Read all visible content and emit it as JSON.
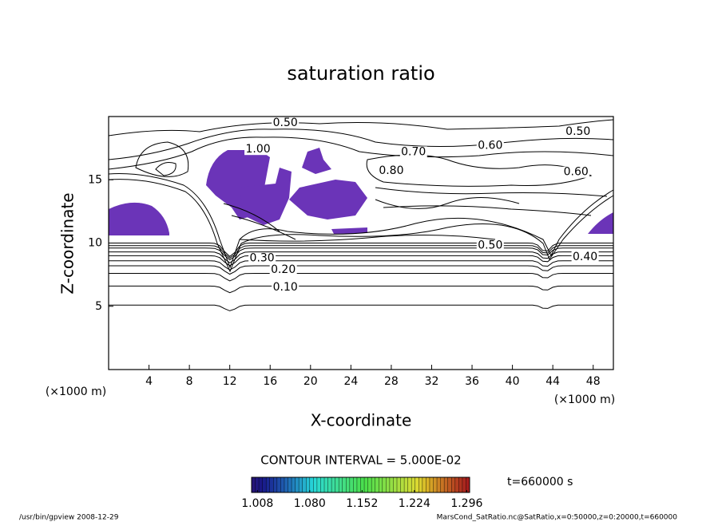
{
  "chart_data": {
    "type": "contour",
    "title": "saturation ratio",
    "xlabel": "X-coordinate",
    "ylabel": "Z-coordinate",
    "xunit": "(×1000 m)",
    "yunit": "(×1000 m)",
    "xlim": [
      0,
      50
    ],
    "ylim": [
      0,
      20
    ],
    "xticks": [
      4,
      8,
      12,
      16,
      20,
      24,
      28,
      32,
      36,
      40,
      44,
      48
    ],
    "yticks": [
      5,
      10,
      15
    ],
    "contours": [
      {
        "level": 0.05,
        "z": 5.1
      },
      {
        "level": 0.1,
        "z": 6.6
      },
      {
        "level": 0.15,
        "z": 7.6
      },
      {
        "level": 0.2,
        "z": 8.2
      },
      {
        "level": 0.25,
        "z": 8.6
      },
      {
        "level": 0.3,
        "z": 9.0
      },
      {
        "level": 0.35,
        "z": 9.3
      },
      {
        "level": 0.4,
        "z": 9.6
      },
      {
        "level": 0.45,
        "z": 9.8
      },
      {
        "level": 0.5,
        "z": 10.0
      }
    ],
    "contour_labels": [
      {
        "value": 0.5,
        "label": "0.50",
        "x": 17.5,
        "z": 19.5
      },
      {
        "value": 0.5,
        "label": "0.50",
        "x": 46.5,
        "z": 18.8
      },
      {
        "value": 0.6,
        "label": "0.60",
        "x": 37.8,
        "z": 17.7
      },
      {
        "value": 0.7,
        "label": "0.70",
        "x": 30.2,
        "z": 17.2
      },
      {
        "value": 0.8,
        "label": "0.80",
        "x": 28.0,
        "z": 15.7
      },
      {
        "value": 1.0,
        "label": "1.00",
        "x": 14.8,
        "z": 17.4
      },
      {
        "value": 0.6,
        "label": "0.60",
        "x": 46.3,
        "z": 15.6
      },
      {
        "value": 0.5,
        "label": "0.50",
        "x": 37.8,
        "z": 9.8
      },
      {
        "value": 0.4,
        "label": "0.40",
        "x": 47.2,
        "z": 8.9
      },
      {
        "value": 0.3,
        "label": "0.30",
        "x": 15.2,
        "z": 8.8
      },
      {
        "value": 0.2,
        "label": "0.20",
        "x": 17.3,
        "z": 7.9
      },
      {
        "value": 0.1,
        "label": "0.10",
        "x": 17.5,
        "z": 6.5
      }
    ],
    "contour_interval": "CONTOUR INTERVAL = 5.000E-02",
    "clim": [
      1.0,
      1.3
    ],
    "cticks": [
      1.008,
      {
        "value": 1.08,
        "label": "1.080"
      },
      1.152,
      1.224,
      1.296
    ],
    "time_label": "t=660000 s",
    "footer_left": "/usr/bin/gpview   2008-12-29",
    "footer_right": "MarsCond_SatRatio.nc@SatRatio,x=0:50000,z=0:20000,t=660000"
  }
}
